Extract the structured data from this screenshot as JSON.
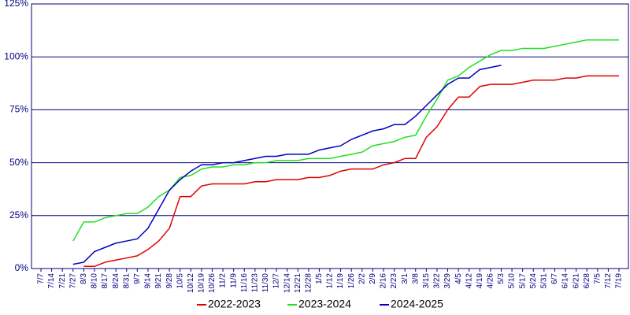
{
  "chart_data": {
    "type": "line",
    "categories": [
      "7/7",
      "7/14",
      "7/21",
      "7/27",
      "8/3",
      "8/10",
      "8/17",
      "8/24",
      "8/31",
      "9/7",
      "9/14",
      "9/21",
      "9/28",
      "10/5",
      "10/12",
      "10/19",
      "10/26",
      "11/2",
      "11/9",
      "11/16",
      "11/23",
      "11/30",
      "12/7",
      "12/14",
      "12/21",
      "12/28",
      "1/5",
      "1/12",
      "1/19",
      "1/26",
      "2/2",
      "2/9",
      "2/16",
      "2/23",
      "3/1",
      "3/8",
      "3/15",
      "3/22",
      "3/29",
      "4/5",
      "4/12",
      "4/19",
      "4/26",
      "5/3",
      "5/10",
      "5/17",
      "5/24",
      "5/31",
      "6/7",
      "6/14",
      "6/21",
      "6/28",
      "7/5",
      "7/12",
      "7/19"
    ],
    "series": [
      {
        "name": "2022-2023",
        "color": "#e00000",
        "values": [
          null,
          null,
          null,
          null,
          1,
          1,
          3,
          4,
          5,
          6,
          9,
          13,
          19,
          34,
          34,
          39,
          40,
          40,
          40,
          40,
          41,
          41,
          42,
          42,
          42,
          43,
          43,
          44,
          46,
          47,
          47,
          47,
          49,
          50,
          52,
          52,
          62,
          67,
          75,
          81,
          81,
          86,
          87,
          87,
          87,
          88,
          89,
          89,
          89,
          90,
          90,
          91,
          91,
          91,
          91
        ]
      },
      {
        "name": "2023-2024",
        "color": "#20e020",
        "values": [
          null,
          null,
          null,
          13,
          22,
          22,
          24,
          25,
          26,
          26,
          29,
          34,
          37,
          43,
          44,
          47,
          48,
          48,
          49,
          49,
          50,
          50,
          51,
          51,
          51,
          52,
          52,
          52,
          53,
          54,
          55,
          58,
          59,
          60,
          62,
          63,
          72,
          80,
          89,
          91,
          95,
          98,
          101,
          103,
          103,
          104,
          104,
          104,
          105,
          106,
          107,
          108,
          108,
          108,
          108
        ]
      },
      {
        "name": "2024-2025",
        "color": "#0000c0",
        "values": [
          null,
          null,
          null,
          2,
          3,
          8,
          10,
          12,
          13,
          14,
          19,
          28,
          37,
          42,
          46,
          49,
          49,
          50,
          50,
          51,
          52,
          53,
          53,
          54,
          54,
          54,
          56,
          57,
          58,
          61,
          63,
          65,
          66,
          68,
          68,
          72,
          77,
          82,
          87,
          90,
          90,
          94,
          95,
          96,
          null,
          null,
          null,
          null,
          null,
          null,
          null,
          null,
          null,
          null,
          null
        ]
      }
    ],
    "ylim": [
      0,
      125
    ],
    "yticks": [
      {
        "value": 0,
        "label": "0%"
      },
      {
        "value": 25,
        "label": "25%"
      },
      {
        "value": 50,
        "label": "50%"
      },
      {
        "value": 75,
        "label": "75%"
      },
      {
        "value": 100,
        "label": "100%"
      },
      {
        "value": 125,
        "label": "125%"
      }
    ],
    "grid": true
  }
}
